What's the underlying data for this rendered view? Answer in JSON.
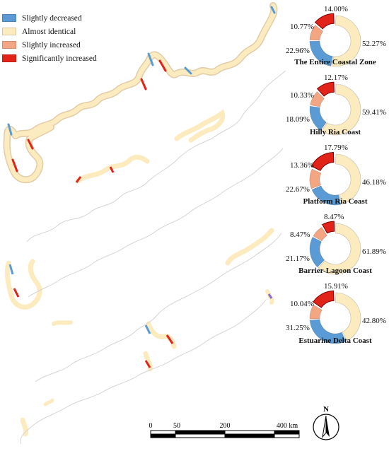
{
  "legend": [
    {
      "label": "Slightly decreased",
      "color": "#5b9bd5"
    },
    {
      "label": "Almost identical",
      "color": "#fdebc0"
    },
    {
      "label": "Slightly increased",
      "color": "#f4a582"
    },
    {
      "label": "Significantly increased",
      "color": "#e2231a"
    }
  ],
  "chart_data": [
    {
      "type": "pie",
      "title": "The Entire Coastal Zone",
      "categories": [
        "Slightly decreased",
        "Almost identical",
        "Slightly increased",
        "Significantly increased"
      ],
      "values": [
        22.96,
        52.27,
        10.77,
        14.0
      ],
      "labels": [
        "22.96%",
        "52.27%",
        "10.77%",
        "14.00%"
      ]
    },
    {
      "type": "pie",
      "title": "Hilly Ria Coast",
      "categories": [
        "Slightly decreased",
        "Almost identical",
        "Slightly increased",
        "Significantly increased"
      ],
      "values": [
        18.09,
        59.41,
        10.33,
        12.17
      ],
      "labels": [
        "18.09%",
        "59.41%",
        "10.33%",
        "12.17%"
      ]
    },
    {
      "type": "pie",
      "title": "Platform Ria Coast",
      "categories": [
        "Slightly decreased",
        "Almost identical",
        "Slightly increased",
        "Significantly increased"
      ],
      "values": [
        22.67,
        46.18,
        13.36,
        17.79
      ],
      "labels": [
        "22.67%",
        "46.18%",
        "13.36%",
        "17.79%"
      ]
    },
    {
      "type": "pie",
      "title": "Barrier-Lagoon Coast",
      "categories": [
        "Slightly decreased",
        "Almost identical",
        "Slightly increased",
        "Significantly increased"
      ],
      "values": [
        21.17,
        61.89,
        8.47,
        8.47
      ],
      "labels": [
        "21.17%",
        "61.89%",
        "8.47%",
        "8.47%"
      ]
    },
    {
      "type": "pie",
      "title": "Estuarine Delta Coast",
      "categories": [
        "Slightly decreased",
        "Almost identical",
        "Slightly increased",
        "Significantly increased"
      ],
      "values": [
        31.25,
        42.8,
        10.04,
        15.91
      ],
      "labels": [
        "31.25%",
        "42.80%",
        "10.04%",
        "15.91%"
      ]
    }
  ],
  "scale_bar": {
    "ticks": [
      "0",
      "50",
      "200",
      "400 km"
    ]
  },
  "north_arrow": {
    "label": "N"
  }
}
